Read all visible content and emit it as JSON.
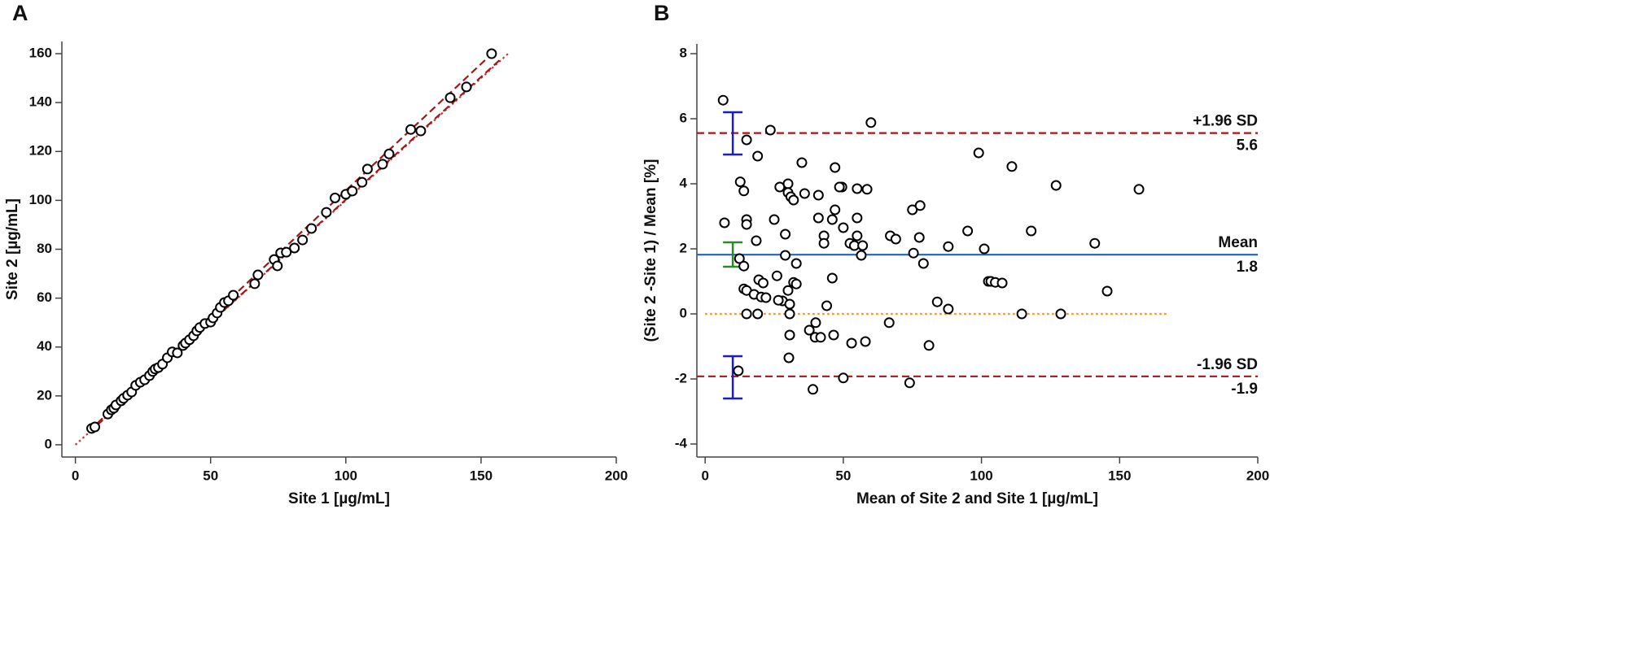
{
  "chart_data": [
    {
      "type": "scatter",
      "title": "A",
      "x_label": "Site 1 [µg/mL]",
      "y_label": "Site 2 [µg/mL]",
      "xlim": [
        -5,
        200
      ],
      "ylim": [
        -5,
        165
      ],
      "xticks": [
        0,
        50,
        100,
        150,
        200
      ],
      "yticks": [
        0,
        20,
        40,
        60,
        80,
        100,
        120,
        140,
        160
      ],
      "point_color": "#000000",
      "x": [
        6,
        7.2,
        12,
        13.3,
        14.2,
        15,
        16.9,
        17.8,
        19.3,
        20.8,
        22.3,
        24,
        25.6,
        27.4,
        28.6,
        29.5,
        30.7,
        32.2,
        34,
        35.8,
        37.7,
        39.8,
        40.7,
        42.2,
        43.7,
        44.9,
        46,
        47.9,
        50,
        50.9,
        52.4,
        53.6,
        55.1,
        56.6,
        58.4,
        66.3,
        67.5,
        73.5,
        74.7,
        75.9,
        78,
        81,
        84,
        87.3,
        92.8,
        96,
        100,
        102.4,
        106,
        108,
        113.6,
        116,
        124,
        127.7,
        138.6,
        144.6,
        153.9
      ],
      "y": [
        6.7,
        7.3,
        12.6,
        14.3,
        15,
        16.3,
        18,
        19,
        20.3,
        21.6,
        24.3,
        25.6,
        26.6,
        28.3,
        30,
        31,
        31.6,
        33,
        35.6,
        38,
        37.6,
        40.6,
        41.6,
        43,
        44.6,
        46.6,
        48,
        49.6,
        50.2,
        51.9,
        53.9,
        56.2,
        58.2,
        58.9,
        61.2,
        65.9,
        69.5,
        75.8,
        73.2,
        78.5,
        78.8,
        80.5,
        83.8,
        88.5,
        95.1,
        101,
        102.5,
        103.8,
        107.4,
        112.8,
        114.8,
        119,
        129,
        128.4,
        142,
        146.4,
        160
      ],
      "lines": [
        {
          "x": [
            0,
            160
          ],
          "y": [
            0,
            160
          ],
          "color": "#d0312d",
          "style": "dotted"
        },
        {
          "x": [
            5,
            155
          ],
          "y": [
            5.6,
            161
          ],
          "color": "#a01818",
          "style": "dashed"
        },
        {
          "x": [
            5,
            157
          ],
          "y": [
            5.0,
            157.5
          ],
          "color": "#a01818",
          "style": "dashed"
        }
      ]
    },
    {
      "type": "scatter",
      "title": "B",
      "x_label": "Mean of Site 2 and Site 1 [µg/mL]",
      "y_label": "(Site 2 -Site 1) / Mean [%]",
      "xlim": [
        -3,
        200
      ],
      "ylim": [
        -4.4,
        8.3
      ],
      "xticks": [
        0,
        50,
        100,
        150,
        200
      ],
      "yticks": [
        -4,
        -2,
        0,
        2,
        4,
        6,
        8
      ],
      "point_color": "#000000",
      "x": [
        6.5,
        7,
        15,
        19,
        12.7,
        14,
        15,
        15,
        18.5,
        12.4,
        14,
        14,
        15,
        17.7,
        19.4,
        21,
        20.3,
        22,
        15,
        19,
        12,
        23.6,
        27,
        25,
        29,
        29,
        26,
        30,
        30,
        31,
        32,
        33,
        32,
        33,
        30,
        28,
        30.6,
        26.5,
        30.6,
        30.6,
        30.3,
        35,
        36,
        41,
        41,
        43,
        43,
        44,
        47,
        47,
        46,
        46,
        49.5,
        48.6,
        50,
        52.4,
        54,
        55,
        55,
        55,
        57,
        56.5,
        58.6,
        60,
        46.5,
        40,
        37.7,
        39.8,
        41.8,
        53,
        58,
        39,
        50,
        66.6,
        67,
        69,
        75,
        77.8,
        77.5,
        75.4,
        79,
        81,
        74,
        84,
        88,
        88,
        95,
        99,
        101,
        102.5,
        103.4,
        105,
        107.5,
        111,
        114.6,
        118,
        127,
        128.7,
        141,
        145.5,
        157
      ],
      "y": [
        6.57,
        2.8,
        5.35,
        4.85,
        4.06,
        3.78,
        2.9,
        2.75,
        2.25,
        1.7,
        1.47,
        0.77,
        0.72,
        0.6,
        1.05,
        0.95,
        0.52,
        0.5,
        0,
        0,
        -1.75,
        5.65,
        3.9,
        2.9,
        2.45,
        1.8,
        1.17,
        4.0,
        3.73,
        3.6,
        3.5,
        1.55,
        0.97,
        0.92,
        0.72,
        0.4,
        0.3,
        0.42,
        0,
        -0.65,
        -1.35,
        4.65,
        3.7,
        3.65,
        2.95,
        2.4,
        2.17,
        0.25,
        4.5,
        3.2,
        2.9,
        1.1,
        3.9,
        3.9,
        2.65,
        2.17,
        2.1,
        3.85,
        2.95,
        2.4,
        2.1,
        1.8,
        3.83,
        5.88,
        -0.65,
        -0.27,
        -0.5,
        -0.72,
        -0.72,
        -0.9,
        -0.85,
        -2.32,
        -1.97,
        -0.27,
        2.4,
        2.3,
        3.2,
        3.33,
        2.35,
        1.87,
        1.55,
        -0.97,
        -2.12,
        0.37,
        0.15,
        2.07,
        2.55,
        4.95,
        2.0,
        1.0,
        1.0,
        0.97,
        0.95,
        4.53,
        0,
        2.55,
        3.95,
        0,
        2.17,
        0.7,
        3.83
      ],
      "reference_lines": [
        {
          "value": 5.56,
          "label": "+1.96 SD",
          "value_label": "5.6",
          "color": "#a01818",
          "style": "dashed"
        },
        {
          "value": 1.82,
          "label": "Mean",
          "value_label": "1.8",
          "color": "#2462b0",
          "style": "solid"
        },
        {
          "value": -1.92,
          "label": "-1.96 SD",
          "value_label": "-1.9",
          "color": "#a01818",
          "style": "dashed"
        },
        {
          "value": 0,
          "x": [
            0,
            167
          ],
          "color": "#ff8c1a",
          "style": "dotted"
        }
      ],
      "error_bars": [
        {
          "x": 10,
          "low": 4.9,
          "high": 6.2,
          "color": "#1a1ad8"
        },
        {
          "x": 10,
          "low": 1.45,
          "high": 2.2,
          "color": "#2a8a2a"
        },
        {
          "x": 10,
          "low": -2.6,
          "high": -1.3,
          "color": "#1a1ad8"
        }
      ]
    }
  ]
}
